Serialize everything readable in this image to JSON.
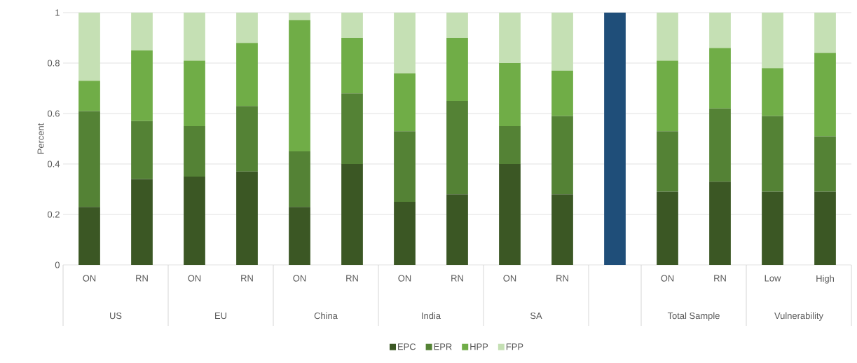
{
  "chart_data": {
    "type": "bar",
    "stacked": true,
    "ylabel": "Percent",
    "categories": [
      "ON",
      "RN",
      "ON",
      "RN",
      "ON",
      "RN",
      "ON",
      "RN",
      "ON",
      "RN",
      null,
      "ON",
      "RN",
      "Low",
      "High"
    ],
    "annotations": [
      "US",
      "EU",
      "China",
      "India",
      "SA",
      "Total Sample",
      "Vulnerability"
    ],
    "series": [
      {
        "name": "EPC",
        "color": "#3b5724",
        "values": [
          0.23,
          0.34,
          0.35,
          0.37,
          0.23,
          0.4,
          0.25,
          0.28,
          0.4,
          0.28,
          null,
          0.29,
          0.33,
          0.29,
          0.29
        ]
      },
      {
        "name": "EPR",
        "color": "#548235",
        "values": [
          0.38,
          0.23,
          0.2,
          0.26,
          0.22,
          0.28,
          0.28,
          0.37,
          0.15,
          0.31,
          null,
          0.24,
          0.29,
          0.3,
          0.22
        ]
      },
      {
        "name": "HPP",
        "color": "#70ad47",
        "values": [
          0.12,
          0.28,
          0.26,
          0.25,
          0.52,
          0.22,
          0.23,
          0.25,
          0.25,
          0.18,
          null,
          0.28,
          0.24,
          0.19,
          0.33
        ]
      },
      {
        "name": "FPP",
        "color": "#c5e0b4",
        "values": [
          0.27,
          0.15,
          0.19,
          0.12,
          0.03,
          0.1,
          0.24,
          0.1,
          0.2,
          0.23,
          null,
          0.19,
          0.14,
          0.22,
          0.16
        ]
      },
      {
        "color": "#1f4e79",
        "values": [
          null,
          null,
          null,
          null,
          null,
          null,
          null,
          null,
          null,
          null,
          1,
          null,
          null,
          null,
          null
        ]
      }
    ],
    "ylim": [
      0,
      1
    ],
    "yticks": [
      0,
      0.2,
      0.4,
      0.6,
      0.8,
      1
    ],
    "grid": "y",
    "legend": "bottom"
  }
}
